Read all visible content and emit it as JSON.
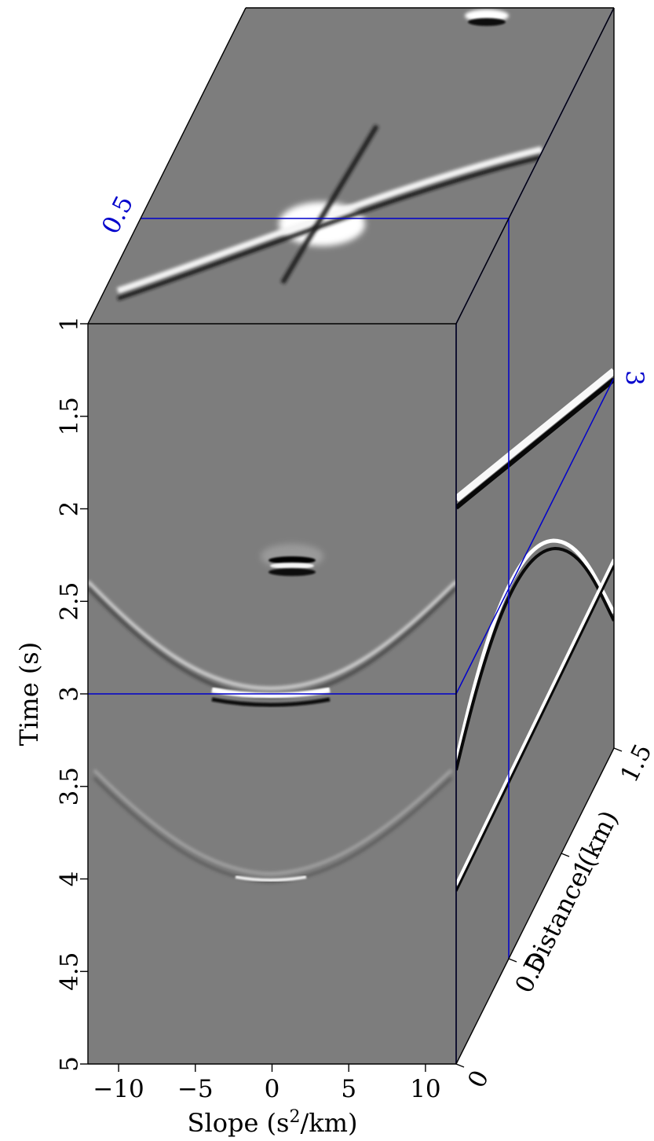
{
  "chart_data": {
    "type": "heatmap",
    "title": "",
    "colors": {
      "background": "#7d7d7d",
      "slice_lines": "#0000cc",
      "frame": "#000000"
    },
    "axes": {
      "time": {
        "label": "Time (s)",
        "range": [
          1,
          5
        ],
        "ticks": [
          "1",
          "1.5",
          "2",
          "2.5",
          "3",
          "3.5",
          "4",
          "4.5",
          "5"
        ],
        "tick_values": [
          1,
          1.5,
          2,
          2.5,
          3,
          3.5,
          4,
          4.5,
          5
        ]
      },
      "slope": {
        "label_prefix": "Slope (s",
        "label_sup": "2",
        "label_suffix": "/km)",
        "range": [
          -12,
          12
        ],
        "ticks": [
          "−10",
          "−5",
          "0",
          "5",
          "10"
        ],
        "tick_values": [
          -10,
          -5,
          0,
          5,
          10
        ]
      },
      "distance": {
        "label": "Distance (km)",
        "range": [
          0,
          1.5
        ],
        "ticks": [
          "0",
          "0.5",
          "1",
          "1.5"
        ],
        "tick_values": [
          0,
          0.5,
          1,
          1.5
        ]
      }
    },
    "slices": {
      "time": {
        "value": 3,
        "label": "3"
      },
      "distance": {
        "value": 0.5,
        "label": "0.5"
      },
      "slope": {
        "value": 12
      }
    },
    "events": {
      "front_panel": [
        {
          "kind": "focused-spot",
          "slope": 3.2,
          "time": 2.3,
          "strength": 1.0
        },
        {
          "kind": "hyperbola",
          "apex_slope": 0,
          "apex_time": 3.0,
          "strength": 0.9
        },
        {
          "kind": "hyperbola",
          "apex_slope": 0,
          "apex_time": 4.0,
          "strength": 0.55
        }
      ],
      "side_panel": [
        {
          "kind": "line",
          "time_at_0": 1.95,
          "time_at_1_5": 1.25
        },
        {
          "kind": "curve",
          "time_at_0": 3.4,
          "peak_time": 2.2,
          "peak_distance": 1.1
        },
        {
          "kind": "line",
          "time_at_0": 4.05,
          "time_at_1_5": 2.25
        }
      ],
      "top_panel": [
        {
          "kind": "cross",
          "slope": 3,
          "distance": 0.5
        },
        {
          "kind": "spot",
          "slope": 6,
          "distance": 1.45
        }
      ]
    }
  }
}
